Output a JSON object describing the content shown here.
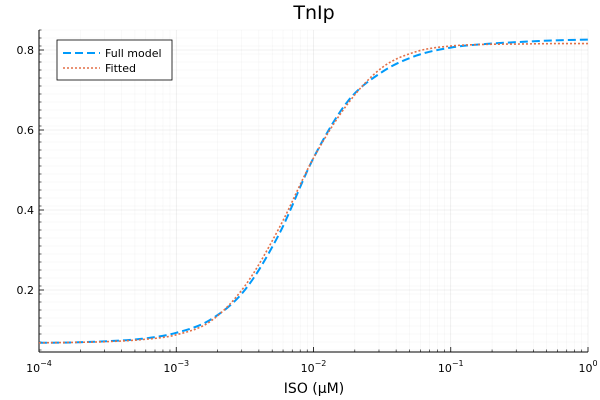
{
  "chart_data": {
    "type": "line",
    "title": "TnIp",
    "xlabel": "ISO (μM)",
    "ylabel": "",
    "xscale": "log10",
    "xlim": [
      0.0001,
      1
    ],
    "ylim": [
      0.045,
      0.85
    ],
    "x_ticks": [
      {
        "value": 0.0001,
        "base": "10",
        "exp": "−4"
      },
      {
        "value": 0.001,
        "base": "10",
        "exp": "−3"
      },
      {
        "value": 0.01,
        "base": "10",
        "exp": "−2"
      },
      {
        "value": 0.1,
        "base": "10",
        "exp": "−1"
      },
      {
        "value": 1,
        "base": "10",
        "exp": "0"
      }
    ],
    "y_ticks": [
      {
        "value": 0.2,
        "label": "0.2"
      },
      {
        "value": 0.4,
        "label": "0.4"
      },
      {
        "value": 0.6,
        "label": "0.6"
      },
      {
        "value": 0.8,
        "label": "0.8"
      }
    ],
    "grid": true,
    "legend_position": "top-left",
    "series": [
      {
        "name": "Full model",
        "color": "#009AFA",
        "style": "dashed",
        "x": [
          0.0001,
          0.000178,
          0.000316,
          0.000562,
          0.001,
          0.00178,
          0.00316,
          0.00562,
          0.01,
          0.0178,
          0.0316,
          0.0562,
          0.1,
          0.178,
          0.316,
          0.562,
          1
        ],
        "y": [
          0.068,
          0.069,
          0.072,
          0.078,
          0.093,
          0.126,
          0.2,
          0.34,
          0.53,
          0.672,
          0.745,
          0.786,
          0.806,
          0.815,
          0.82,
          0.824,
          0.826
        ]
      },
      {
        "name": "Fitted",
        "color": "#E26F46",
        "style": "dotted",
        "x": [
          0.0001,
          0.000178,
          0.000316,
          0.000562,
          0.001,
          0.00178,
          0.00316,
          0.00562,
          0.01,
          0.0178,
          0.0316,
          0.0562,
          0.1,
          0.178,
          0.316,
          0.562,
          1
        ],
        "y": [
          0.068,
          0.069,
          0.071,
          0.076,
          0.088,
          0.122,
          0.21,
          0.355,
          0.53,
          0.666,
          0.756,
          0.796,
          0.81,
          0.814,
          0.815,
          0.816,
          0.816
        ]
      }
    ]
  }
}
